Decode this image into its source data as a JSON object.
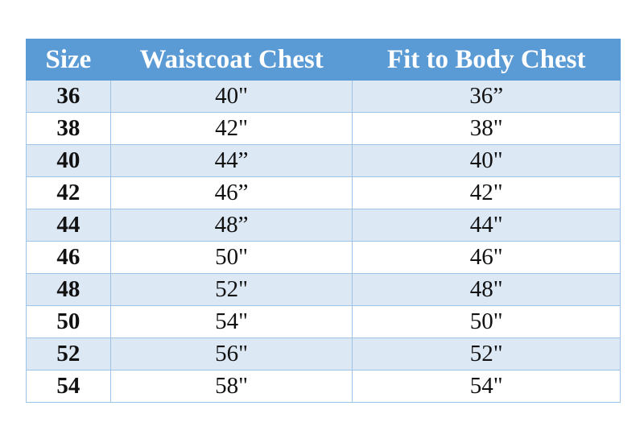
{
  "headers": [
    "Size",
    "Waistcoat Chest",
    "Fit to Body Chest"
  ],
  "rows": [
    [
      "36",
      "40\"",
      "36”"
    ],
    [
      "38",
      "42\"",
      "38\""
    ],
    [
      "40",
      "44”",
      "40\""
    ],
    [
      "42",
      "46”",
      "42\""
    ],
    [
      "44",
      "48”",
      "44\""
    ],
    [
      "46",
      "50\"",
      "46\""
    ],
    [
      "48",
      "52\"",
      "48\""
    ],
    [
      "50",
      "54\"",
      "50\""
    ],
    [
      "52",
      "56\"",
      "52\""
    ],
    [
      "54",
      "58\"",
      "54\""
    ]
  ],
  "colors": {
    "header": "#5b9bd5",
    "band": "#dde8f5",
    "border": "#9dc3e6"
  }
}
